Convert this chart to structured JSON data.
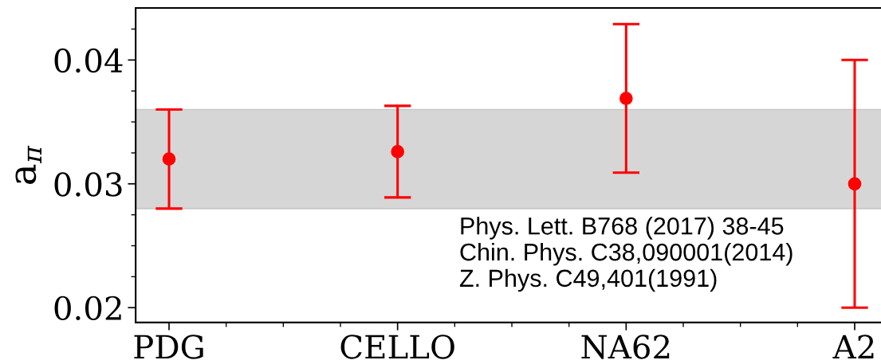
{
  "chart_data": {
    "type": "scatter",
    "ylabel": "a$_{π}$",
    "categories": [
      "PDG",
      "CELLO",
      "NA62",
      "A2"
    ],
    "series": [
      {
        "color": "#ff0000",
        "values": [
          0.032,
          0.0326,
          0.0369,
          0.03
        ],
        "errors": [
          [
            0.028,
            0.036
          ],
          [
            0.0289,
            0.0363
          ],
          [
            0.0309,
            0.0429
          ],
          [
            0.02,
            0.04
          ]
        ]
      }
    ],
    "marker": "circle",
    "ylim": [
      0.0188,
      0.0442
    ],
    "yticks": [
      0.02,
      0.03,
      0.04
    ],
    "bands": [
      {
        "axis": "y",
        "from": 0.028,
        "to": 0.036,
        "color": "#d6d6d6"
      }
    ],
    "annotations": [
      "Phys. Lett. B768 (2017) 38-45",
      "Chin. Phys. C38,090001(2014)",
      "Z. Phys. C49,401(1991)"
    ],
    "grid": false,
    "legend": false
  }
}
